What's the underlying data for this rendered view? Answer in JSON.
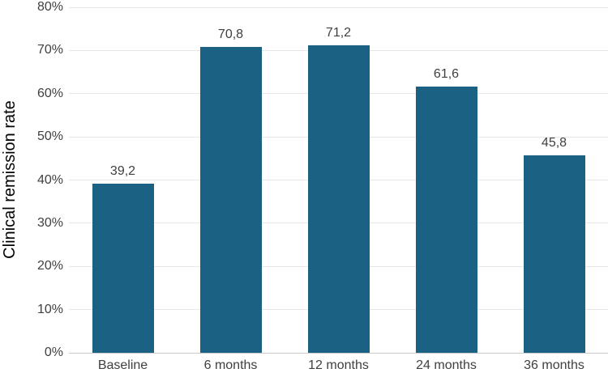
{
  "chart_data": {
    "type": "bar",
    "categories": [
      "Baseline",
      "6 months",
      "12 months",
      "24 months",
      "36 months"
    ],
    "values": [
      39.2,
      70.8,
      71.2,
      61.6,
      45.8
    ],
    "value_labels": [
      "39,2",
      "70,8",
      "71,2",
      "61,6",
      "45,8"
    ],
    "title": "",
    "xlabel": "",
    "ylabel": "Clinical remission rate",
    "ylim": [
      0,
      80
    ],
    "ytick_step": 10,
    "ytick_labels": [
      "0%",
      "10%",
      "20%",
      "30%",
      "40%",
      "50%",
      "60%",
      "70%",
      "80%"
    ],
    "grid": true,
    "legend": false,
    "colors": {
      "bar_fill": "#1a6183",
      "gridline": "#e7e7e7",
      "axis_line": "#c9c9c9",
      "tick_text": "#404040",
      "value_text": "#404040",
      "axis_title_text": "#000000",
      "background": "#ffffff"
    }
  }
}
